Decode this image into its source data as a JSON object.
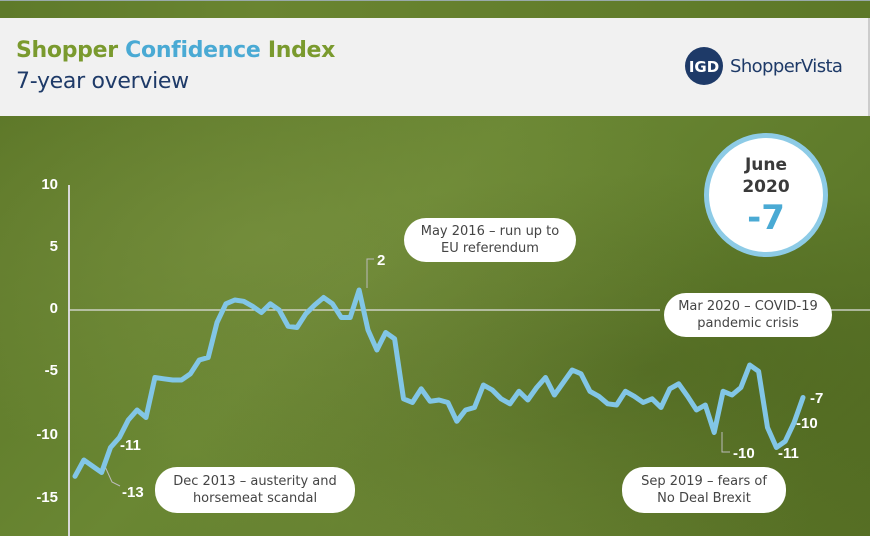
{
  "header": {
    "title_part1": "Shopper",
    "title_part2": "Confidence",
    "title_part3": "Index",
    "subtitle": "7-year overview",
    "logo_mark": "IGD",
    "logo_text": "ShopperVista"
  },
  "badge": {
    "month": "June",
    "year": "2020",
    "value": "-7"
  },
  "colors": {
    "line": "#82c6e6",
    "title_green": "#7a9a2e",
    "title_blue": "#4aaad4",
    "navy": "#1e3a68",
    "background_green": "#5f7a2a"
  },
  "callouts": [
    {
      "id": "dec2013",
      "text": "Dec 2013 – austerity and horsemeat scandal"
    },
    {
      "id": "may2016",
      "text": "May 2016 – run up to EU referendum"
    },
    {
      "id": "mar2020",
      "text": "Mar 2020 – COVID-19 pandemic crisis"
    },
    {
      "id": "sep2019",
      "text": "Sep 2019 – fears of No Deal Brexit"
    }
  ],
  "data_labels": [
    "-13",
    "-11",
    "2",
    "-10",
    "-11",
    "-10",
    "-7"
  ],
  "chart_data": {
    "type": "line",
    "title": "Shopper Confidence Index",
    "subtitle": "7-year overview",
    "xlabel": "",
    "ylabel": "",
    "ylim": [
      -15,
      10
    ],
    "yticks": [
      10,
      5,
      0,
      -5,
      -10,
      -15
    ],
    "grid": false,
    "legend": "none",
    "series": [
      {
        "name": "Shopper Confidence Index",
        "values": [
          -13.3,
          -12.0,
          -12.5,
          -13.0,
          -11.0,
          -10.2,
          -8.8,
          -8.0,
          -8.6,
          -5.4,
          -5.5,
          -5.6,
          -5.6,
          -5.1,
          -4.0,
          -3.8,
          -1.0,
          0.5,
          0.8,
          0.7,
          0.3,
          -0.2,
          0.5,
          0.0,
          -1.3,
          -1.4,
          -0.3,
          0.4,
          1.0,
          0.5,
          -0.6,
          -0.6,
          1.6,
          -1.6,
          -3.2,
          -1.8,
          -2.3,
          -7.1,
          -7.4,
          -6.3,
          -7.3,
          -7.2,
          -7.4,
          -8.9,
          -8.0,
          -7.8,
          -6.0,
          -6.4,
          -7.1,
          -7.5,
          -6.5,
          -7.2,
          -6.2,
          -5.4,
          -6.8,
          -5.8,
          -4.8,
          -5.1,
          -6.5,
          -6.9,
          -7.5,
          -7.6,
          -6.5,
          -6.9,
          -7.4,
          -7.1,
          -7.8,
          -6.3,
          -5.9,
          -6.9,
          -8.0,
          -7.6,
          -9.8,
          -6.5,
          -6.8,
          -6.2,
          -4.4,
          -4.9,
          -9.4,
          -11.0,
          -10.5,
          -9.0,
          -7.0
        ],
        "annotations": [
          {
            "label": "-13",
            "value": -13,
            "note": "Dec 2013 – austerity and horsemeat scandal"
          },
          {
            "label": "-11",
            "value": -11
          },
          {
            "label": "2",
            "value": 2,
            "note": "May 2016 – run up to EU referendum"
          },
          {
            "label": "-10",
            "value": -10,
            "note": "Sep 2019 – fears of No Deal Brexit"
          },
          {
            "label": "-11",
            "value": -11,
            "note": "Mar 2020 – COVID-19 pandemic crisis"
          },
          {
            "label": "-10",
            "value": -10
          },
          {
            "label": "-7",
            "value": -7,
            "note": "June 2020"
          }
        ]
      }
    ]
  }
}
